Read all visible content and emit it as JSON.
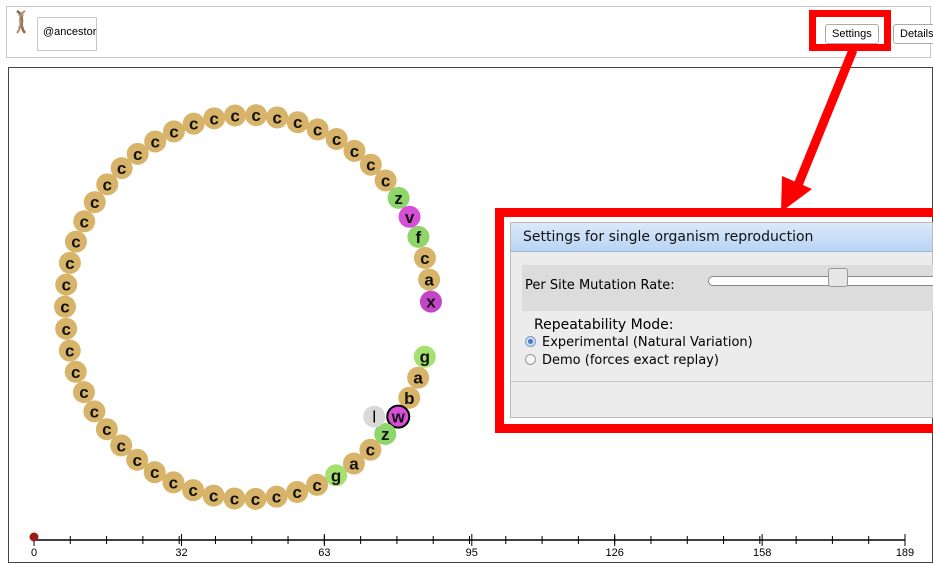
{
  "header": {
    "organism_name": "@ancestor",
    "settings_label": "Settings",
    "details_label": "Details"
  },
  "genome": {
    "letters": [
      "g",
      "a",
      "b",
      "w",
      "z",
      "c",
      "a",
      "g",
      "c",
      "c",
      "c",
      "c",
      "c",
      "c",
      "c",
      "c",
      "c",
      "c",
      "c",
      "c",
      "c",
      "c",
      "c",
      "c",
      "c",
      "c",
      "c",
      "c",
      "c",
      "c",
      "c",
      "c",
      "c",
      "c",
      "c",
      "c",
      "c",
      "c",
      "c",
      "c",
      "c",
      "c",
      "c",
      "c",
      "c",
      "c",
      "c",
      "z",
      "v",
      "f",
      "c",
      "a",
      "x"
    ],
    "inserted_letter": "l",
    "active_letter": "w"
  },
  "timeline": {
    "ticks": [
      "0",
      "32",
      "63",
      "95",
      "126",
      "158",
      "189"
    ],
    "position": 0
  },
  "dialog": {
    "title": "Settings for single organism reproduction",
    "mutation_label": "Per Site Mutation Rate:",
    "repeatability_label": "Repeatability Mode:",
    "option_experimental": "Experimental (Natural Variation)",
    "option_demo": "Demo (forces exact replay)"
  },
  "colors": {
    "c": "#d7b46a",
    "g": "#a6e070",
    "a": "#d7b46a",
    "b": "#d7b46a",
    "z": "#8fd66a",
    "v": "#d64fd6",
    "f": "#8fd66a",
    "x": "#c545c8",
    "w": "#d64fd6",
    "l": "#d9d9d9",
    "highlight": "#ff0000"
  }
}
